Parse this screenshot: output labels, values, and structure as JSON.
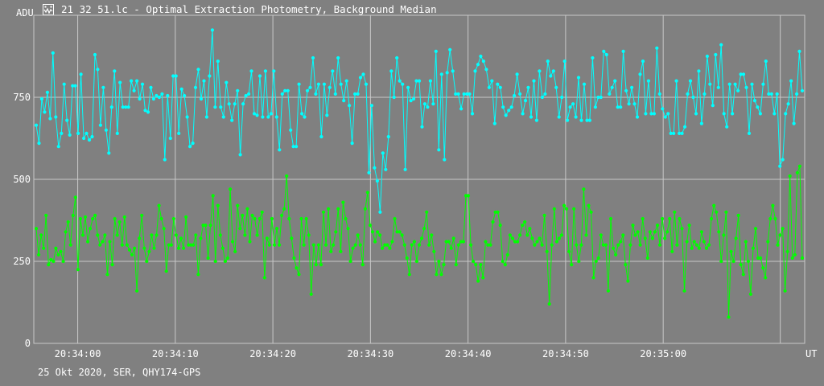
{
  "window": {
    "title": "21_32_51.lc - Optimal Extraction Photometry, Background Median",
    "footer": "25 Okt 2020, SER, QHY174-GPS",
    "icon": "lightcurve-app-icon"
  },
  "colors": {
    "background": "#808080",
    "grid": "#c8c8c8",
    "series_top": "#00ffff",
    "series_bottom": "#00ff00",
    "text": "#ffffff"
  },
  "chart_data": {
    "type": "line",
    "xlabel": "UT",
    "ylabel": "ADU",
    "ylim": [
      0,
      1000
    ],
    "grid": true,
    "x_ticks": [
      {
        "label": "20:34:00",
        "t": 14
      },
      {
        "label": "20:34:10",
        "t": 24
      },
      {
        "label": "20:34:20",
        "t": 34
      },
      {
        "label": "20:34:30",
        "t": 44
      },
      {
        "label": "20:34:40",
        "t": 54
      },
      {
        "label": "20:34:50",
        "t": 64
      },
      {
        "label": "20:35:00",
        "t": 74
      }
    ],
    "x_range": [
      9.5,
      88.5
    ],
    "extra_vline_t": 86,
    "y_ticks": [
      0,
      250,
      500,
      750
    ],
    "series": [
      {
        "color": "#00ffff",
        "values": [
          665,
          610,
          745,
          705,
          765,
          685,
          885,
          690,
          600,
          640,
          790,
          680,
          635,
          785,
          785,
          640,
          820,
          625,
          640,
          620,
          630,
          880,
          835,
          665,
          780,
          650,
          580,
          720,
          830,
          640,
          795,
          720,
          720,
          720,
          800,
          770,
          800,
          745,
          790,
          710,
          705,
          780,
          745,
          755,
          750,
          760,
          560,
          755,
          625,
          815,
          815,
          640,
          775,
          755,
          690,
          600,
          610,
          780,
          835,
          745,
          800,
          690,
          815,
          955,
          720,
          860,
          720,
          690,
          795,
          730,
          680,
          730,
          770,
          575,
          730,
          755,
          760,
          830,
          700,
          695,
          815,
          690,
          830,
          690,
          700,
          830,
          690,
          590,
          760,
          770,
          770,
          650,
          600,
          600,
          790,
          700,
          690,
          770,
          780,
          870,
          760,
          790,
          630,
          790,
          695,
          780,
          830,
          760,
          870,
          790,
          740,
          800,
          725,
          610,
          760,
          760,
          810,
          820,
          790,
          520,
          725,
          535,
          495,
          400,
          580,
          530,
          630,
          830,
          750,
          870,
          800,
          790,
          530,
          780,
          740,
          745,
          800,
          800,
          660,
          730,
          720,
          800,
          730,
          890,
          590,
          820,
          560,
          825,
          895,
          830,
          760,
          760,
          715,
          760,
          760,
          760,
          700,
          830,
          850,
          875,
          860,
          835,
          780,
          800,
          670,
          790,
          780,
          720,
          695,
          710,
          720,
          755,
          820,
          760,
          700,
          740,
          780,
          690,
          800,
          680,
          830,
          750,
          760,
          860,
          815,
          830,
          780,
          690,
          750,
          860,
          680,
          720,
          730,
          690,
          810,
          680,
          790,
          680,
          680,
          870,
          720,
          750,
          750,
          890,
          880,
          760,
          780,
          800,
          720,
          720,
          890,
          770,
          730,
          780,
          730,
          690,
          820,
          860,
          700,
          800,
          700,
          700,
          900,
          760,
          715,
          690,
          700,
          640,
          640,
          800,
          640,
          640,
          660,
          760,
          800,
          750,
          700,
          830,
          670,
          760,
          875,
          790,
          725,
          880,
          780,
          910,
          700,
          660,
          790,
          700,
          790,
          770,
          820,
          820,
          780,
          640,
          790,
          740,
          720,
          700,
          790,
          860,
          760,
          760,
          700,
          760,
          540,
          560,
          700,
          730,
          800,
          670,
          760,
          890,
          770
        ]
      },
      {
        "color": "#00ff00",
        "values": [
          350,
          270,
          330,
          290,
          390,
          240,
          255,
          250,
          290,
          270,
          280,
          250,
          340,
          370,
          300,
          390,
          445,
          225,
          380,
          330,
          385,
          310,
          350,
          380,
          390,
          330,
          300,
          310,
          330,
          210,
          310,
          240,
          380,
          330,
          370,
          300,
          385,
          300,
          285,
          270,
          290,
          160,
          320,
          390,
          290,
          250,
          280,
          330,
          290,
          330,
          420,
          380,
          350,
          220,
          300,
          300,
          380,
          330,
          290,
          320,
          290,
          385,
          300,
          300,
          300,
          330,
          210,
          320,
          360,
          360,
          260,
          360,
          450,
          250,
          420,
          330,
          290,
          250,
          260,
          470,
          310,
          280,
          420,
          350,
          390,
          330,
          410,
          310,
          390,
          380,
          330,
          380,
          400,
          200,
          320,
          300,
          380,
          300,
          350,
          300,
          390,
          410,
          510,
          380,
          320,
          260,
          230,
          210,
          380,
          300,
          380,
          330,
          150,
          300,
          240,
          300,
          240,
          400,
          300,
          410,
          280,
          300,
          340,
          410,
          280,
          430,
          380,
          350,
          250,
          290,
          300,
          330,
          300,
          240,
          410,
          460,
          360,
          340,
          310,
          340,
          330,
          290,
          300,
          300,
          290,
          310,
          380,
          340,
          340,
          330,
          300,
          260,
          210,
          300,
          310,
          250,
          300,
          320,
          350,
          400,
          300,
          330,
          280,
          210,
          250,
          210,
          240,
          310,
          310,
          290,
          320,
          240,
          300,
          310,
          310,
          450,
          450,
          300,
          250,
          240,
          190,
          240,
          200,
          310,
          300,
          300,
          370,
          400,
          400,
          360,
          250,
          240,
          270,
          330,
          320,
          310,
          310,
          330,
          360,
          370,
          330,
          350,
          320,
          300,
          310,
          320,
          300,
          390,
          280,
          120,
          300,
          410,
          310,
          320,
          330,
          420,
          410,
          280,
          240,
          410,
          300,
          250,
          300,
          470,
          330,
          420,
          400,
          200,
          250,
          260,
          330,
          300,
          300,
          160,
          380,
          290,
          270,
          300,
          310,
          330,
          240,
          190,
          300,
          360,
          330,
          340,
          300,
          380,
          320,
          260,
          340,
          320,
          340,
          360,
          300,
          380,
          320,
          340,
          380,
          280,
          400,
          300,
          380,
          350,
          160,
          310,
          360,
          290,
          310,
          300,
          290,
          340,
          310,
          290,
          300,
          380,
          420,
          400,
          340,
          250,
          330,
          400,
          80,
          280,
          250,
          320,
          390,
          240,
          210,
          310,
          250,
          150,
          290,
          350,
          260,
          260,
          230,
          200,
          310,
          380,
          420,
          380,
          300,
          330,
          350,
          160,
          280,
          510,
          260,
          270,
          520,
          540,
          260
        ]
      }
    ]
  }
}
